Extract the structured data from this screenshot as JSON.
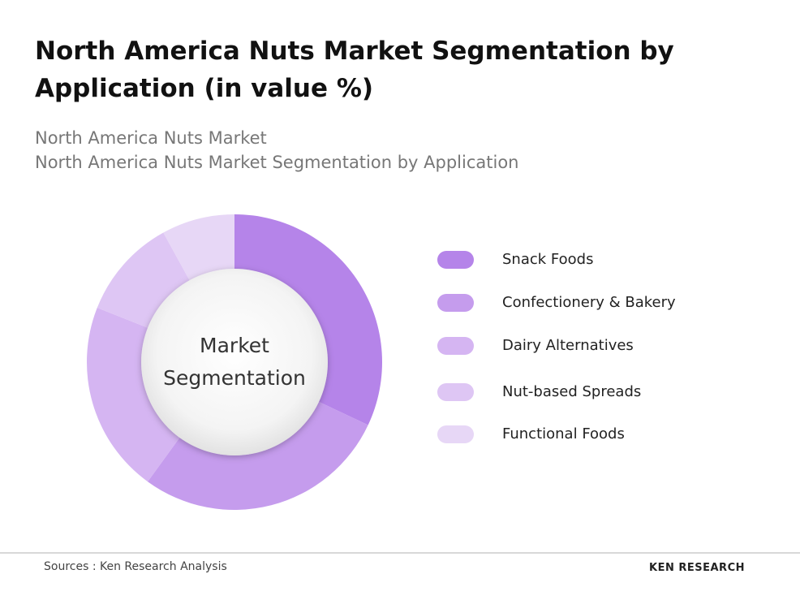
{
  "chart_data": {
    "type": "donut",
    "title": "North America Nuts Market Segmentation by Application (in value %)",
    "subtitle": [
      "North America Nuts Market",
      "North America Nuts Market Segmentation by Application"
    ],
    "center_label": "Market Segmentation",
    "categories": [
      "Snack Foods",
      "Confectionery & Bakery",
      "Dairy Alternatives",
      "Nut-based Spreads",
      "Functional Foods"
    ],
    "values": [
      32,
      28,
      21,
      11,
      8
    ],
    "colors": [
      "#b584e9",
      "#c59ced",
      "#d5b5f2",
      "#dec6f4",
      "#e7d7f6"
    ]
  },
  "footer": {
    "source": "Sources : Ken Research Analysis",
    "logo": "KEN RESEARCH"
  }
}
